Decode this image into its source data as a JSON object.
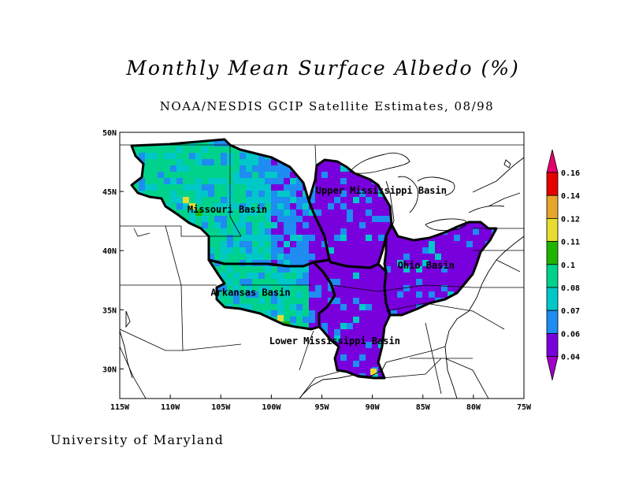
{
  "title": "Monthly Mean Surface Albedo (%)",
  "subtitle": "NOAA/NESDIS GCIP Satellite Estimates, 08/98",
  "credit": "University of Maryland",
  "map": {
    "lon_range": [
      -115,
      -75
    ],
    "lat_range": [
      27.5,
      50
    ],
    "x_ticks": [
      {
        "lon": -115,
        "label": "115W"
      },
      {
        "lon": -110,
        "label": "110W"
      },
      {
        "lon": -105,
        "label": "105W"
      },
      {
        "lon": -100,
        "label": "100W"
      },
      {
        "lon": -95,
        "label": "95W"
      },
      {
        "lon": -90,
        "label": "90W"
      },
      {
        "lon": -85,
        "label": "85W"
      },
      {
        "lon": -80,
        "label": "80W"
      },
      {
        "lon": -75,
        "label": "75W"
      }
    ],
    "y_ticks": [
      {
        "lat": 50,
        "label": "50N"
      },
      {
        "lat": 45,
        "label": "45N"
      },
      {
        "lat": 40,
        "label": "40N"
      },
      {
        "lat": 35,
        "label": "35N"
      },
      {
        "lat": 30,
        "label": "30N"
      }
    ],
    "basins": [
      {
        "name": "Missouri Basin",
        "lon": -108.3,
        "lat": 43.2
      },
      {
        "name": "Upper Mississippi Basin",
        "lon": -95.6,
        "lat": 44.8
      },
      {
        "name": "Ohio Basin",
        "lon": -87.5,
        "lat": 38.5
      },
      {
        "name": "Arkansas Basin",
        "lon": -106.0,
        "lat": 36.2
      },
      {
        "name": "Lower Mississippi Basin",
        "lon": -100.2,
        "lat": 32.1
      }
    ]
  },
  "colorbar": {
    "levels": [
      {
        "label": "0.16",
        "color": "#e8006e"
      },
      {
        "label": "0.14",
        "color": "#e60000"
      },
      {
        "label": "0.12",
        "color": "#e6a52d"
      },
      {
        "label": "0.11",
        "color": "#e6dc32"
      },
      {
        "label": "0.1",
        "color": "#1eb400"
      },
      {
        "label": "0.08",
        "color": "#00d28c"
      },
      {
        "label": "0.07",
        "color": "#00c8c8"
      },
      {
        "label": "0.06",
        "color": "#1e8cf0"
      },
      {
        "label": "0.04",
        "color": "#7800dc"
      }
    ],
    "bottom_color": "#a000c8"
  }
}
